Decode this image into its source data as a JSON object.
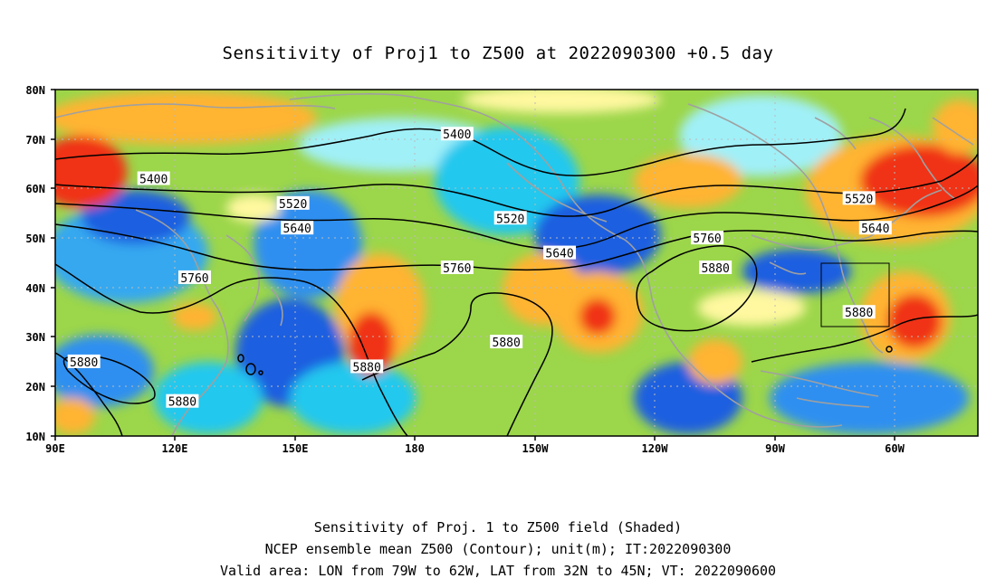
{
  "title": "Sensitivity of Proj1 to Z500 at 2022090300 +0.5 day",
  "axes": {
    "lat_labels": [
      "80N",
      "70N",
      "60N",
      "50N",
      "40N",
      "30N",
      "20N",
      "10N"
    ],
    "lon_labels": [
      "90E",
      "120E",
      "150E",
      "180",
      "150W",
      "120W",
      "90W",
      "60W"
    ]
  },
  "contours": {
    "labels": [
      {
        "text": "5400",
        "lon": 114,
        "lat": 62
      },
      {
        "text": "5400",
        "lon": -172,
        "lat": 71
      },
      {
        "text": "5520",
        "lon": 148,
        "lat": 57
      },
      {
        "text": "5520",
        "lon": -159,
        "lat": 54
      },
      {
        "text": "5520",
        "lon": -74,
        "lat": 58
      },
      {
        "text": "5640",
        "lon": 149,
        "lat": 52
      },
      {
        "text": "5640",
        "lon": -147,
        "lat": 47
      },
      {
        "text": "5640",
        "lon": -70,
        "lat": 52
      },
      {
        "text": "5760",
        "lon": 124,
        "lat": 42
      },
      {
        "text": "5760",
        "lon": -172,
        "lat": 44
      },
      {
        "text": "5760",
        "lon": -111,
        "lat": 50
      },
      {
        "text": "5880",
        "lon": -109,
        "lat": 44
      },
      {
        "text": "5880",
        "lon": -74,
        "lat": 35
      },
      {
        "text": "5880",
        "lon": -160,
        "lat": 29
      },
      {
        "text": "5880",
        "lon": 166,
        "lat": 24
      },
      {
        "text": "5880",
        "lon": 97,
        "lat": 25
      },
      {
        "text": "5880",
        "lon": 121,
        "lat": 17
      }
    ]
  },
  "valid_area": {
    "lon_min": "79W",
    "lon_max": "62W",
    "lat_min": "32N",
    "lat_max": "45N"
  },
  "footer": {
    "line1": "Sensitivity of Proj. 1 to Z500 field (Shaded)",
    "line2": "NCEP ensemble mean Z500 (Contour); unit(m); IT:2022090300",
    "line3": "Valid area: LON from 79W to 62W, LAT from 32N to 45N; VT: 2022090600"
  },
  "colors": {
    "strong_negative": "#1f4fe0",
    "negative": "#2f8ff0",
    "weak_negative": "#22c8ee",
    "near_zero_low": "#a0f0f8",
    "near_zero_high": "#fff8a0",
    "weak_positive": "#96d23c",
    "positive": "#ffb432",
    "strong_positive": "#f03214",
    "coastline": "#a0a0a0"
  }
}
